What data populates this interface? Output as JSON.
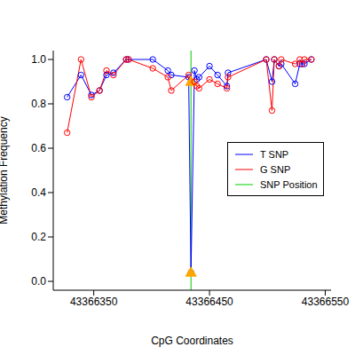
{
  "chart_data": {
    "type": "line",
    "x_label": "CpG Coordinates",
    "y_label": "Methylation Frequency",
    "x": [
      43366327,
      43366339,
      43366348,
      43366355,
      43366361,
      43366367,
      43366378,
      43366380,
      43366401,
      43366414,
      43366417,
      43366432,
      43366434,
      43366437,
      43366439,
      43366441,
      43366450,
      43366457,
      43366465,
      43366466,
      43366499,
      43366504,
      43366506,
      43366510,
      43366512,
      43366524,
      43366528,
      43366530,
      43366532,
      43366538
    ],
    "series": [
      {
        "name": "T SNP",
        "color": "#0000ff",
        "marker": "open_circle",
        "values": [
          0.83,
          0.93,
          0.84,
          0.86,
          0.93,
          0.94,
          1.0,
          1.0,
          1.0,
          0.95,
          0.93,
          0.92,
          0.04,
          0.95,
          0.91,
          0.92,
          0.97,
          0.93,
          0.88,
          0.94,
          1.0,
          0.9,
          1.0,
          0.97,
          0.98,
          0.89,
          0.98,
          0.98,
          0.98,
          1.0
        ]
      },
      {
        "name": "G SNP",
        "color": "#ff0000",
        "marker": "open_circle",
        "values": [
          0.67,
          1.0,
          0.83,
          0.86,
          0.95,
          0.93,
          1.0,
          1.0,
          0.96,
          0.92,
          0.86,
          0.93,
          0.9,
          0.9,
          0.88,
          0.87,
          0.91,
          0.89,
          0.87,
          0.92,
          1.0,
          0.77,
          1.0,
          0.97,
          1.0,
          0.98,
          1.0,
          0.98,
          1.0,
          1.0
        ]
      }
    ],
    "reference_line": {
      "name": "SNP Position",
      "x": 43366434,
      "color": "#00cc00",
      "marker_color": "#ffa500",
      "marker": "triangle"
    },
    "xlim": [
      43366315,
      43366555
    ],
    "xticks": [
      43366350,
      43366450,
      43366550
    ],
    "ylim": [
      -0.04,
      1.04
    ],
    "yticks": [
      {
        "value": 0,
        "label": "0.0"
      },
      {
        "value": 0.2,
        "label": "0.2"
      },
      {
        "value": 0.4,
        "label": "0.4"
      },
      {
        "value": 0.6,
        "label": "0.6"
      },
      {
        "value": 0.8,
        "label": "0.8"
      },
      {
        "value": 1.0,
        "label": "1.0"
      }
    ],
    "legend": "right",
    "grid": false
  }
}
